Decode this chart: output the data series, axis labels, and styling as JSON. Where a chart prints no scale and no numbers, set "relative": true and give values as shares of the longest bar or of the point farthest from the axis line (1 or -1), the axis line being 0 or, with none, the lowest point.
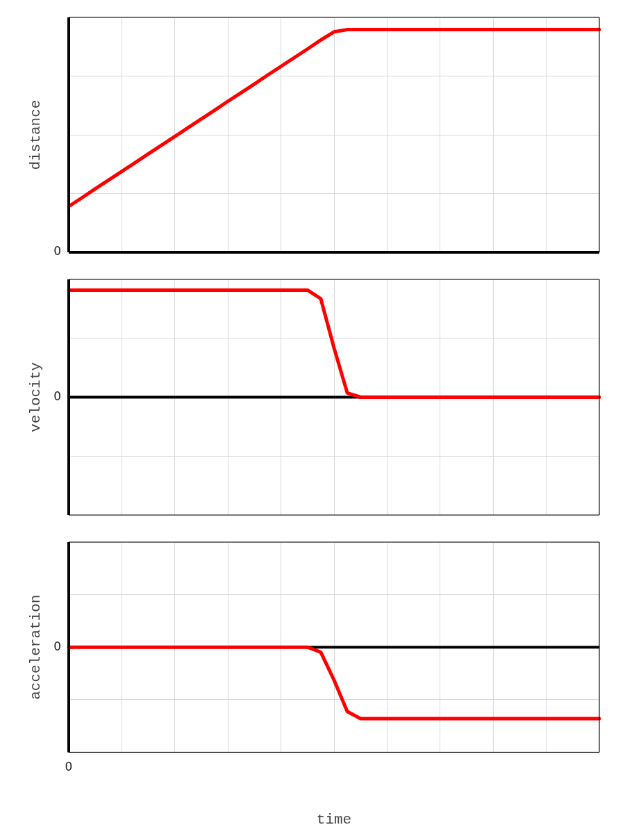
{
  "chart_data": [
    {
      "type": "line",
      "ylabel": "distance",
      "relative": true,
      "grid": true,
      "annotations": [
        "0"
      ],
      "categories": [
        null,
        null,
        null,
        null,
        null,
        null,
        null,
        null,
        null,
        null,
        null,
        null,
        null,
        null,
        null,
        null,
        null,
        null,
        null,
        null,
        null,
        null,
        null,
        null,
        null,
        null,
        null,
        null,
        null,
        null,
        null,
        null,
        null,
        null,
        null,
        null,
        null,
        null,
        null,
        null,
        null
      ],
      "series": [
        {
          "color": "#ff0000",
          "values": [
            0.206,
            0.245,
            0.285,
            0.324,
            0.363,
            0.402,
            0.442,
            0.481,
            0.52,
            0.56,
            0.599,
            0.638,
            0.678,
            0.717,
            0.756,
            0.796,
            0.835,
            0.874,
            0.913,
            0.953,
            0.99,
            1,
            1,
            1,
            1,
            1,
            1,
            1,
            1,
            1,
            1,
            1,
            1,
            1,
            1,
            1,
            1,
            1,
            1,
            1,
            1
          ]
        }
      ]
    },
    {
      "type": "line",
      "ylabel": "velocity",
      "relative": true,
      "grid": true,
      "annotations": [
        "0"
      ],
      "categories": [
        null,
        null,
        null,
        null,
        null,
        null,
        null,
        null,
        null,
        null,
        null,
        null,
        null,
        null,
        null,
        null,
        null,
        null,
        null,
        null,
        null,
        null,
        null,
        null,
        null,
        null,
        null,
        null,
        null,
        null,
        null,
        null,
        null,
        null,
        null,
        null,
        null,
        null,
        null,
        null,
        null
      ],
      "series": [
        {
          "color": "#ff0000",
          "values": [
            1,
            1,
            1,
            1,
            1,
            1,
            1,
            1,
            1,
            1,
            1,
            1,
            1,
            1,
            1,
            1,
            1,
            1,
            1,
            0.92,
            0.46,
            0.04,
            0,
            0,
            0,
            0,
            0,
            0,
            0,
            0,
            0,
            0,
            0,
            0,
            0,
            0,
            0,
            0,
            0,
            0,
            0
          ]
        }
      ]
    },
    {
      "type": "line",
      "ylabel": "acceleration",
      "xlabel": "time",
      "relative": true,
      "grid": true,
      "annotations": [
        "0",
        "0"
      ],
      "categories": [
        null,
        null,
        null,
        null,
        null,
        null,
        null,
        null,
        null,
        null,
        null,
        null,
        null,
        null,
        null,
        null,
        null,
        null,
        null,
        null,
        null,
        null,
        null,
        null,
        null,
        null,
        null,
        null,
        null,
        null,
        null,
        null,
        null,
        null,
        null,
        null,
        null,
        null,
        null,
        null,
        null
      ],
      "series": [
        {
          "color": "#ff0000",
          "values": [
            0,
            0,
            0,
            0,
            0,
            0,
            0,
            0,
            0,
            0,
            0,
            0,
            0,
            0,
            0,
            0,
            0,
            0,
            0,
            -0.07,
            -0.46,
            -0.9,
            -1,
            -1,
            -1,
            -1,
            -1,
            -1,
            -1,
            -1,
            -1,
            -1,
            -1,
            -1,
            -1,
            -1,
            -1,
            -1,
            -1,
            -1,
            -1
          ]
        }
      ]
    }
  ]
}
